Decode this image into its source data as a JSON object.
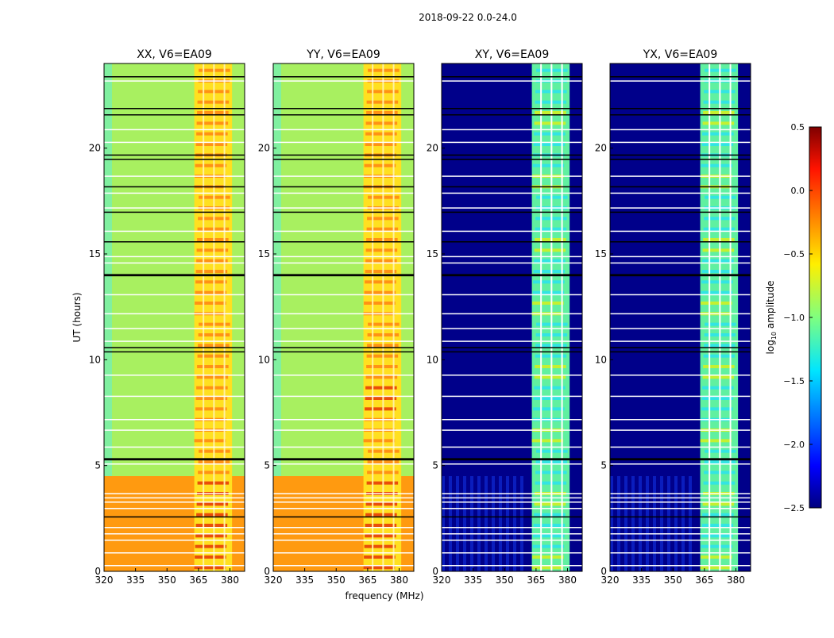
{
  "chart_data": {
    "type": "heatmap",
    "title": "2018-09-22 0.0-24.0",
    "xlabel": "frequency (MHz)",
    "ylabel": "UT (hours)",
    "xlim": [
      320,
      387
    ],
    "ylim": [
      0,
      24
    ],
    "xticks": [
      "320",
      "335",
      "350",
      "365",
      "380"
    ],
    "xtick_values": [
      320,
      335,
      350,
      365,
      380
    ],
    "yticks": [
      "0",
      "5",
      "10",
      "15",
      "20"
    ],
    "ytick_values": [
      0,
      5,
      10,
      15,
      20
    ],
    "panels": [
      {
        "title": "XX, V6=EA09",
        "kind": "parallel"
      },
      {
        "title": "YY, V6=EA09",
        "kind": "parallel"
      },
      {
        "title": "XY, V6=EA09",
        "kind": "cross"
      },
      {
        "title": "YX, V6=EA09",
        "kind": "cross"
      }
    ],
    "band_mhz": [
      363,
      381
    ],
    "band_gaps_mhz": [
      367,
      372,
      377
    ],
    "flagged_hours_black": [
      2.6,
      5.3,
      5.35,
      10.4,
      10.6,
      14.0,
      14.05,
      15.6,
      17.0,
      18.2,
      19.5,
      19.7,
      21.6,
      21.9,
      23.4
    ],
    "flagged_hours_white": [
      0.3,
      0.9,
      1.5,
      1.8,
      2.1,
      3.0,
      3.3,
      3.5,
      3.7,
      5.1,
      5.9,
      6.7,
      7.2,
      8.3,
      9.3,
      10.9,
      11.5,
      12.2,
      13.1,
      14.6,
      14.9,
      16.1,
      17.2,
      17.9,
      18.7,
      20.3,
      20.9,
      23.2
    ],
    "colorbar": {
      "label": "log10 amplitude",
      "label_main": "log",
      "label_sub": "10",
      "label_rest": " amplitude",
      "range": [
        -2.5,
        0.5
      ],
      "ticks": [
        "0.5",
        "0.0",
        "−0.5",
        "−1.0",
        "−1.5",
        "−2.0",
        "−2.5"
      ],
      "tick_values": [
        0.5,
        0.0,
        -0.5,
        -1.0,
        -1.5,
        -2.0,
        -2.5
      ],
      "colormap": "jet"
    }
  }
}
